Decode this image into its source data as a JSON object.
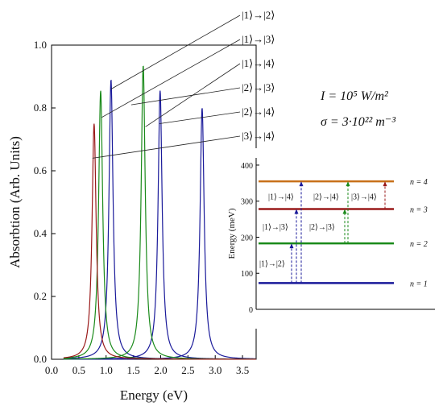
{
  "chart_data": [
    {
      "type": "line",
      "xlabel": "Energy (eV)",
      "ylabel": "Absorbtion (Arb. Units)",
      "xlim": [
        0.0,
        3.75
      ],
      "ylim": [
        0.0,
        1.0
      ],
      "xticks": [
        "0.0",
        "0.5",
        "1.0",
        "1.5",
        "2.0",
        "2.5",
        "3.0",
        "3.5"
      ],
      "yticks": [
        "0.0",
        "0.2",
        "0.4",
        "0.6",
        "0.8",
        "1.0"
      ],
      "grid": false,
      "series": [
        {
          "name": "|1⟩→|2⟩",
          "peak_x": 1.09,
          "peak_y": 0.89,
          "width": 0.045,
          "color": "#1a1a9a"
        },
        {
          "name": "|1⟩→|3⟩",
          "peak_x": 1.99,
          "peak_y": 0.855,
          "width": 0.045,
          "color": "#1a1a9a"
        },
        {
          "name": "|1⟩→|4⟩",
          "peak_x": 2.76,
          "peak_y": 0.8,
          "width": 0.045,
          "color": "#1a1a9a"
        },
        {
          "name": "|2⟩→|3⟩",
          "peak_x": 0.9,
          "peak_y": 0.855,
          "width": 0.045,
          "color": "#1a8a1a"
        },
        {
          "name": "|2⟩→|4⟩",
          "peak_x": 1.68,
          "peak_y": 0.935,
          "width": 0.045,
          "color": "#1a8a1a"
        },
        {
          "name": "|3⟩→|4⟩",
          "peak_x": 0.78,
          "peak_y": 0.75,
          "width": 0.045,
          "color": "#9a1a1a"
        }
      ],
      "legend_labels": [
        {
          "label": "|1⟩→|2⟩",
          "target_x": 1.09,
          "target_y": 0.86
        },
        {
          "label": "|1⟩→|3⟩",
          "target_x": 0.92,
          "target_y": 0.77
        },
        {
          "label": "|1⟩→|4⟩",
          "target_x": 1.72,
          "target_y": 0.74
        },
        {
          "label": "|2⟩→|3⟩",
          "target_x": 1.46,
          "target_y": 0.81
        },
        {
          "label": "|2⟩→|4⟩",
          "target_x": 1.98,
          "target_y": 0.75
        },
        {
          "label": "|3⟩→|4⟩",
          "target_x": 0.75,
          "target_y": 0.64
        }
      ],
      "annotations": [
        "I = 10⁵ W/m²",
        "σ = 3·10²² m⁻³"
      ]
    },
    {
      "type": "line",
      "ylabel": "Energy (meV)",
      "ylim": [
        0,
        420
      ],
      "yticks": [
        "0",
        "100",
        "200",
        "300",
        "400"
      ],
      "levels": [
        {
          "name": "n = 1",
          "energy": 73,
          "color": "#1a1a9a"
        },
        {
          "name": "n = 2",
          "energy": 183,
          "color": "#1a8a1a"
        },
        {
          "name": "n = 3",
          "energy": 278,
          "color": "#9a1a1a"
        },
        {
          "name": "n = 4",
          "energy": 355,
          "color": "#c8701a"
        }
      ],
      "transitions": [
        {
          "label": "|1⟩→|2⟩",
          "from": 1,
          "to": 2
        },
        {
          "label": "|1⟩→|3⟩",
          "from": 1,
          "to": 3
        },
        {
          "label": "|1⟩→|4⟩",
          "from": 1,
          "to": 4
        },
        {
          "label": "|2⟩→|3⟩",
          "from": 2,
          "to": 3
        },
        {
          "label": "|2⟩→|4⟩",
          "from": 2,
          "to": 4
        },
        {
          "label": "|3⟩→|4⟩",
          "from": 3,
          "to": 4
        }
      ]
    }
  ]
}
